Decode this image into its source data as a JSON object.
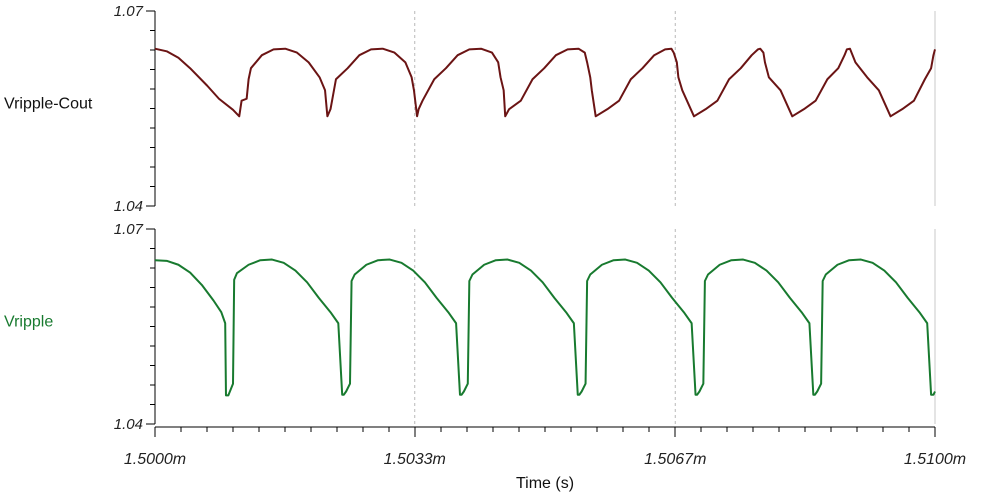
{
  "chart_data": [
    {
      "type": "line",
      "title": "",
      "ylabel": "Vripple-Cout",
      "xlabel": "",
      "ylim": [
        1.04,
        1.07
      ],
      "ytick_labels": [
        "1.07",
        "1.04"
      ],
      "grid": "vertical-dashed",
      "series": [
        {
          "name": "Vripple-Cout",
          "color": "#6b1414",
          "x": [
            1.5,
            1.50015,
            1.5003,
            1.50045,
            1.50067,
            1.50082,
            1.501,
            1.50108,
            1.50111,
            1.501175,
            1.5012,
            1.50123,
            1.50137,
            1.50152,
            1.50167,
            1.50182,
            1.50197,
            1.50211,
            1.50218,
            1.50221,
            1.50225,
            1.50227,
            1.50232,
            1.50247,
            1.50262,
            1.50277,
            1.50292,
            1.50307,
            1.50321,
            1.50329,
            1.50332,
            1.50336,
            1.50338,
            1.50343,
            1.50358,
            1.50373,
            1.50388,
            1.50403,
            1.50418,
            1.50432,
            1.5044,
            1.50443,
            1.50447,
            1.50449,
            1.50454,
            1.50469,
            1.50484,
            1.50499,
            1.50514,
            1.50529,
            1.50543,
            1.50551,
            1.50554,
            1.50558,
            1.5056,
            1.50565,
            1.5058,
            1.50595,
            1.5061,
            1.50625,
            1.5064,
            1.50654,
            1.50662,
            1.50665,
            1.50669,
            1.50671,
            1.50676,
            1.50691,
            1.50706,
            1.50721,
            1.50736,
            1.50751,
            1.50765,
            1.50773,
            1.50776,
            1.5078,
            1.50782,
            1.50787,
            1.50802,
            1.50817,
            1.50832,
            1.50847,
            1.50862,
            1.50876,
            1.50884,
            1.50887,
            1.50891,
            1.50893,
            1.50898,
            1.50913,
            1.50928,
            1.50943,
            1.50958,
            1.50973,
            1.50987,
            1.50995,
            1.50998,
            1.51
          ],
          "y": [
            1.0642,
            1.0638,
            1.0628,
            1.0612,
            1.0585,
            1.0565,
            1.0548,
            1.0538,
            1.0562,
            1.0565,
            1.0595,
            1.0612,
            1.0632,
            1.0641,
            1.0642,
            1.0636,
            1.0621,
            1.0598,
            1.0578,
            1.0538,
            1.0549,
            1.0562,
            1.0595,
            1.0612,
            1.0632,
            1.0641,
            1.0642,
            1.0636,
            1.0621,
            1.0598,
            1.0578,
            1.0538,
            1.0549,
            1.0562,
            1.0595,
            1.0612,
            1.0632,
            1.0641,
            1.0642,
            1.0636,
            1.0621,
            1.0598,
            1.0578,
            1.0538,
            1.0549,
            1.0562,
            1.0595,
            1.0612,
            1.0632,
            1.0641,
            1.0642,
            1.0636,
            1.0621,
            1.0598,
            1.0578,
            1.0538,
            1.0549,
            1.0562,
            1.0595,
            1.0612,
            1.0632,
            1.0641,
            1.0642,
            1.0636,
            1.0621,
            1.0598,
            1.0578,
            1.0538,
            1.0549,
            1.0562,
            1.0595,
            1.0612,
            1.0632,
            1.0641,
            1.0642,
            1.0636,
            1.0621,
            1.0598,
            1.0578,
            1.0538,
            1.0549,
            1.0562,
            1.0595,
            1.0612,
            1.0632,
            1.0641,
            1.0642,
            1.0636,
            1.0621,
            1.0598,
            1.0578,
            1.0538,
            1.0549,
            1.0562,
            1.0595,
            1.0612,
            1.0632,
            1.0641
          ]
        }
      ]
    },
    {
      "type": "line",
      "title": "",
      "ylabel": "Vripple",
      "xlabel": "Time (s)",
      "xlim": [
        1.5,
        1.51
      ],
      "ylim": [
        1.04,
        1.07
      ],
      "ytick_labels": [
        "1.07",
        "1.04"
      ],
      "xtick_values": [
        1.5,
        1.50333,
        1.50667,
        1.51
      ],
      "xtick_labels": [
        "1.5000m",
        "1.5033m",
        "1.5067m",
        "1.5100m"
      ],
      "grid": "vertical-dashed",
      "series": [
        {
          "name": "Vripple",
          "color": "#187a2f",
          "x": [
            1.5,
            1.50015,
            1.5003,
            1.50045,
            1.5006,
            1.50075,
            1.50085,
            1.5009,
            1.50091,
            1.50094,
            1.501,
            1.501015,
            1.50105,
            1.5012,
            1.50135,
            1.5015,
            1.50165,
            1.5018,
            1.50195,
            1.5021,
            1.50225,
            1.50235,
            1.5024,
            1.50242,
            1.50245,
            1.5025,
            1.50252,
            1.50256,
            1.50271,
            1.50286,
            1.50301,
            1.50316,
            1.50331,
            1.50346,
            1.50361,
            1.50376,
            1.50386,
            1.50391,
            1.50393,
            1.50396,
            1.50401,
            1.50403,
            1.50407,
            1.50422,
            1.50437,
            1.50452,
            1.50467,
            1.50482,
            1.50497,
            1.50512,
            1.50527,
            1.50537,
            1.50542,
            1.50544,
            1.50547,
            1.50552,
            1.50554,
            1.50558,
            1.50573,
            1.50588,
            1.50603,
            1.50618,
            1.50633,
            1.50648,
            1.50663,
            1.50678,
            1.50688,
            1.50693,
            1.50695,
            1.50698,
            1.50703,
            1.50705,
            1.50709,
            1.50724,
            1.50739,
            1.50754,
            1.50769,
            1.50784,
            1.50799,
            1.50814,
            1.50829,
            1.50839,
            1.50844,
            1.50846,
            1.50849,
            1.50854,
            1.50856,
            1.5086,
            1.50875,
            1.5089,
            1.50905,
            1.5092,
            1.50935,
            1.5095,
            1.50965,
            1.5098,
            1.5099,
            1.50995,
            1.50998,
            1.51
          ],
          "y": [
            1.0652,
            1.0651,
            1.0645,
            1.0633,
            1.0614,
            1.059,
            1.0572,
            1.0555,
            1.0444,
            1.0444,
            1.0462,
            1.0622,
            1.0632,
            1.0645,
            1.0652,
            1.0653,
            1.0648,
            1.0636,
            1.0618,
            1.0594,
            1.0572,
            1.0555,
            1.0445,
            1.0445,
            1.045,
            1.0462,
            1.062,
            1.063,
            1.0645,
            1.0652,
            1.0653,
            1.0648,
            1.0636,
            1.0618,
            1.0594,
            1.0572,
            1.0555,
            1.0445,
            1.0445,
            1.045,
            1.0462,
            1.062,
            1.063,
            1.0645,
            1.0652,
            1.0653,
            1.0648,
            1.0636,
            1.0618,
            1.0594,
            1.0572,
            1.0555,
            1.0445,
            1.0445,
            1.045,
            1.0462,
            1.062,
            1.063,
            1.0645,
            1.0652,
            1.0653,
            1.0648,
            1.0636,
            1.0618,
            1.0594,
            1.0572,
            1.0555,
            1.0445,
            1.0445,
            1.045,
            1.0462,
            1.062,
            1.063,
            1.0645,
            1.0652,
            1.0653,
            1.0648,
            1.0636,
            1.0618,
            1.0594,
            1.0572,
            1.0555,
            1.0445,
            1.0445,
            1.045,
            1.0462,
            1.062,
            1.063,
            1.0645,
            1.0652,
            1.0653,
            1.0648,
            1.0636,
            1.0618,
            1.0594,
            1.0572,
            1.0555,
            1.0445,
            1.0445,
            1.045
          ]
        }
      ]
    }
  ]
}
